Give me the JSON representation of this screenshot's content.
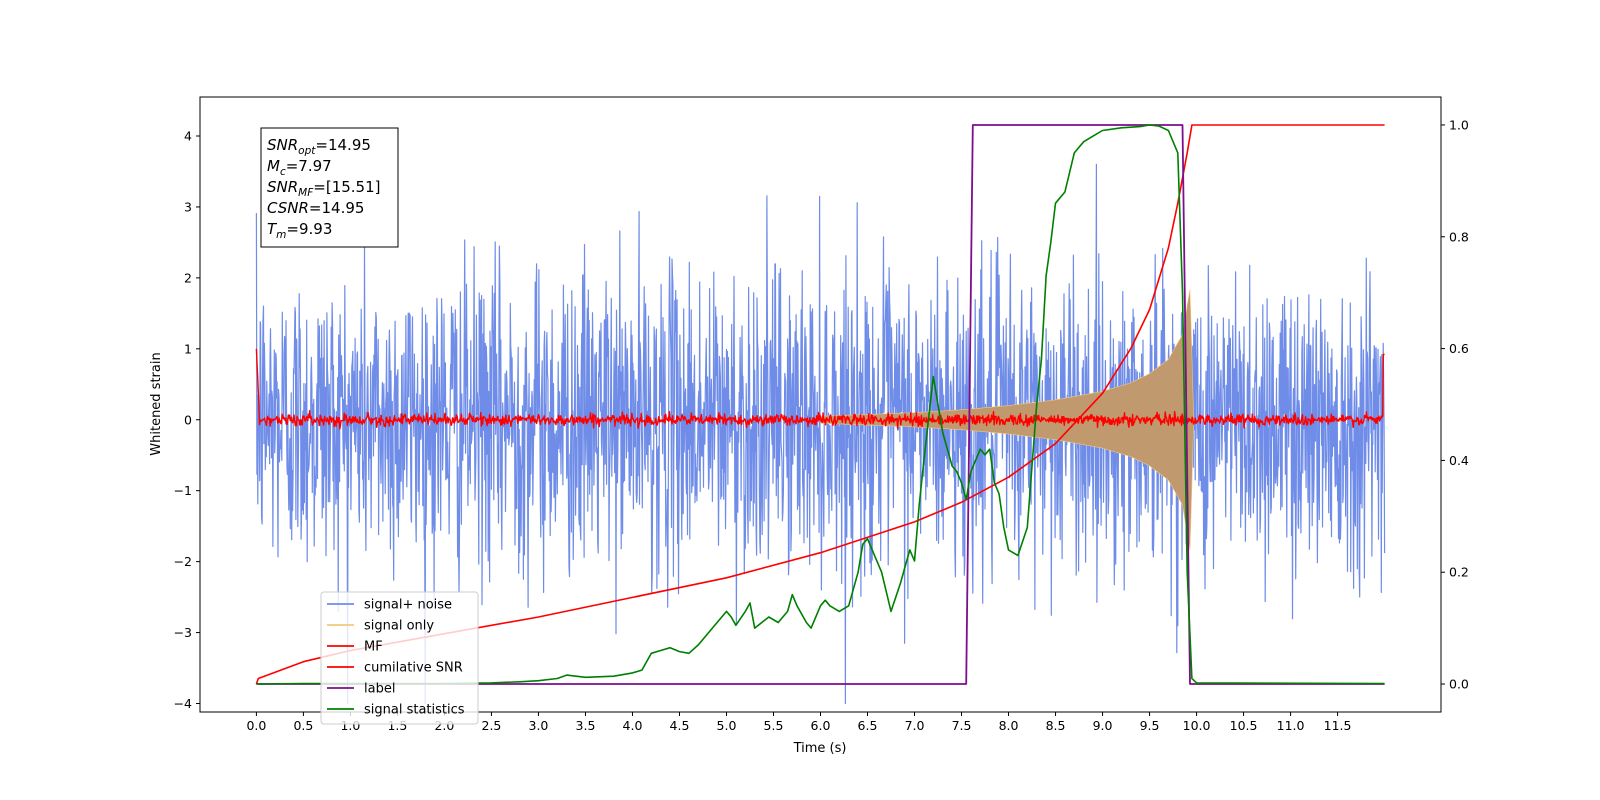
{
  "chart_data": {
    "type": "line",
    "xlabel": "Time (s)",
    "ylabel": "Whitened strain",
    "xlim": [
      -0.6,
      12.6
    ],
    "ylim": [
      -4.12,
      4.55
    ],
    "ylim_right": [
      -0.05,
      1.05
    ],
    "xticks": [
      "0.0",
      "0.5",
      "1.0",
      "1.5",
      "2.0",
      "2.5",
      "3.0",
      "3.5",
      "4.0",
      "4.5",
      "5.0",
      "5.5",
      "6.0",
      "6.5",
      "7.0",
      "7.5",
      "8.0",
      "8.5",
      "9.0",
      "9.5",
      "10.0",
      "10.5",
      "11.0",
      "11.5"
    ],
    "yticks_left": [
      "4",
      "3",
      "2",
      "1",
      "0",
      "−1",
      "−2",
      "−3",
      "−4"
    ],
    "yticks_right": [
      "1.0",
      "0.8",
      "0.6",
      "0.4",
      "0.2",
      "0.0"
    ],
    "annotation": {
      "lines": [
        {
          "base": "SNR",
          "sub": "opt",
          "rest": "=14.95"
        },
        {
          "base": "M",
          "sub": "c",
          "rest": "=7.97"
        },
        {
          "base": "SNR",
          "sub": "MF",
          "rest": "=[15.51]"
        },
        {
          "base": "CSNR",
          "sub": "",
          "rest": "=14.95"
        },
        {
          "base": "T",
          "sub": "m",
          "rest": "=9.93"
        }
      ]
    },
    "legend": {
      "placement": "lower-left",
      "entries": [
        "signal+ noise",
        "signal only",
        "MF",
        "cumilative SNR",
        "label",
        "signal statistics"
      ]
    },
    "colors": {
      "noise": "#6f8de8",
      "signal": "#f5c87a",
      "signal_fill": "#c0996e",
      "mf": "#ff0000",
      "csnr": "#ff0000",
      "label": "#7b0f8c",
      "stats": "#008000"
    },
    "series": [
      {
        "name": "signal+ noise",
        "axis": "left",
        "note": "white noise, sigma ~1, t = 0 to 12 s",
        "x_range": [
          0,
          12
        ],
        "std": 1.05
      },
      {
        "name": "signal only",
        "axis": "left",
        "note": "chirp, amplitude growing until merger at 9.93 s",
        "x": [
          6.0,
          7.0,
          7.5,
          8.0,
          8.5,
          9.0,
          9.3,
          9.5,
          9.7,
          9.85,
          9.93,
          9.97
        ],
        "amplitude": [
          0.05,
          0.1,
          0.14,
          0.2,
          0.28,
          0.4,
          0.52,
          0.65,
          0.85,
          1.2,
          1.85,
          0.0
        ]
      },
      {
        "name": "MF",
        "axis": "left",
        "note": "matched filter output, ~0 with small noise",
        "x_range": [
          0,
          12
        ],
        "level": 0.0,
        "std": 0.04
      },
      {
        "name": "cumilative SNR",
        "axis": "right",
        "x": [
          0.0,
          0.02,
          0.5,
          1.0,
          2.0,
          3.0,
          4.0,
          5.0,
          6.0,
          7.0,
          7.5,
          8.0,
          8.5,
          9.0,
          9.3,
          9.5,
          9.7,
          9.8,
          9.9,
          9.95,
          10.0,
          12.0
        ],
        "y": [
          0.0,
          0.01,
          0.04,
          0.06,
          0.09,
          0.12,
          0.155,
          0.19,
          0.235,
          0.29,
          0.325,
          0.37,
          0.43,
          0.52,
          0.6,
          0.67,
          0.78,
          0.86,
          0.95,
          1.0,
          1.0,
          1.0
        ]
      },
      {
        "name": "label",
        "axis": "right",
        "x": [
          0.0,
          7.55,
          7.62,
          9.85,
          9.93,
          12.0
        ],
        "y": [
          0.0,
          0.0,
          1.0,
          1.0,
          0.0,
          0.0
        ]
      },
      {
        "name": "signal statistics",
        "axis": "right",
        "x": [
          0.0,
          0.5,
          1.0,
          1.5,
          2.0,
          2.5,
          2.8,
          3.0,
          3.2,
          3.3,
          3.5,
          3.8,
          4.0,
          4.1,
          4.2,
          4.3,
          4.4,
          4.5,
          4.6,
          4.7,
          4.9,
          5.0,
          5.05,
          5.1,
          5.2,
          5.25,
          5.3,
          5.45,
          5.55,
          5.65,
          5.7,
          5.75,
          5.85,
          5.9,
          6.0,
          6.05,
          6.1,
          6.2,
          6.3,
          6.4,
          6.45,
          6.5,
          6.55,
          6.65,
          6.75,
          6.85,
          6.95,
          7.0,
          7.05,
          7.1,
          7.2,
          7.3,
          7.4,
          7.45,
          7.5,
          7.55,
          7.6,
          7.7,
          7.75,
          7.8,
          7.85,
          7.9,
          7.95,
          8.0,
          8.1,
          8.2,
          8.3,
          8.35,
          8.4,
          8.45,
          8.5,
          8.6,
          8.7,
          8.8,
          8.9,
          9.0,
          9.2,
          9.4,
          9.5,
          9.6,
          9.7,
          9.8,
          9.85,
          9.9,
          9.95,
          10.0,
          12.0
        ],
        "y": [
          0.0,
          0.001,
          0.001,
          0.001,
          0.001,
          0.002,
          0.004,
          0.006,
          0.01,
          0.016,
          0.012,
          0.014,
          0.02,
          0.025,
          0.055,
          0.06,
          0.065,
          0.058,
          0.055,
          0.07,
          0.11,
          0.13,
          0.12,
          0.105,
          0.13,
          0.145,
          0.1,
          0.12,
          0.11,
          0.13,
          0.16,
          0.14,
          0.11,
          0.1,
          0.14,
          0.15,
          0.14,
          0.13,
          0.14,
          0.2,
          0.25,
          0.26,
          0.24,
          0.2,
          0.13,
          0.18,
          0.24,
          0.22,
          0.32,
          0.4,
          0.55,
          0.45,
          0.39,
          0.38,
          0.36,
          0.33,
          0.38,
          0.42,
          0.41,
          0.42,
          0.36,
          0.34,
          0.28,
          0.24,
          0.23,
          0.28,
          0.5,
          0.58,
          0.73,
          0.79,
          0.86,
          0.88,
          0.95,
          0.97,
          0.98,
          0.99,
          0.995,
          0.997,
          1.0,
          0.998,
          0.99,
          0.95,
          0.7,
          0.2,
          0.01,
          0.002,
          0.001
        ]
      }
    ]
  }
}
